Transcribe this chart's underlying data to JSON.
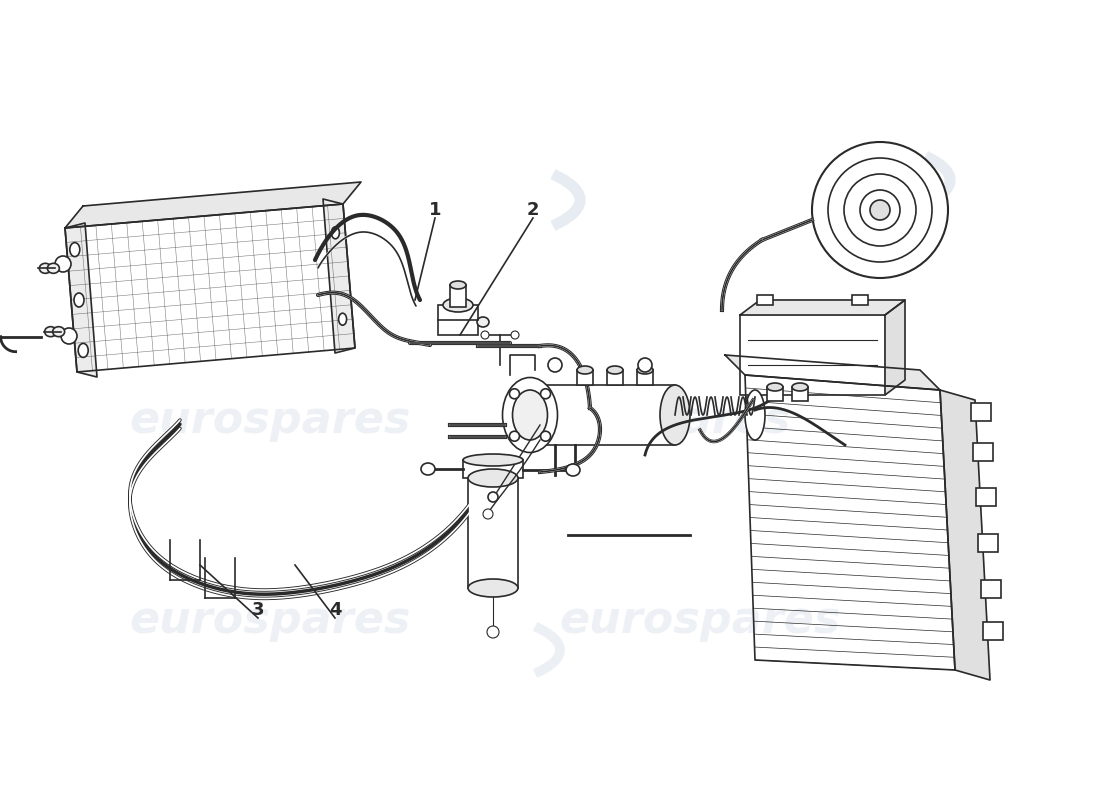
{
  "bg_color": "#ffffff",
  "line_color": "#2a2a2a",
  "part_numbers": [
    "1",
    "2",
    "3",
    "4"
  ],
  "label_1": [
    0.395,
    0.785
  ],
  "label_2": [
    0.485,
    0.785
  ],
  "label_3": [
    0.235,
    0.305
  ],
  "label_4": [
    0.305,
    0.305
  ],
  "watermark_color": "#a0b0cc",
  "watermark_alpha": 0.18
}
